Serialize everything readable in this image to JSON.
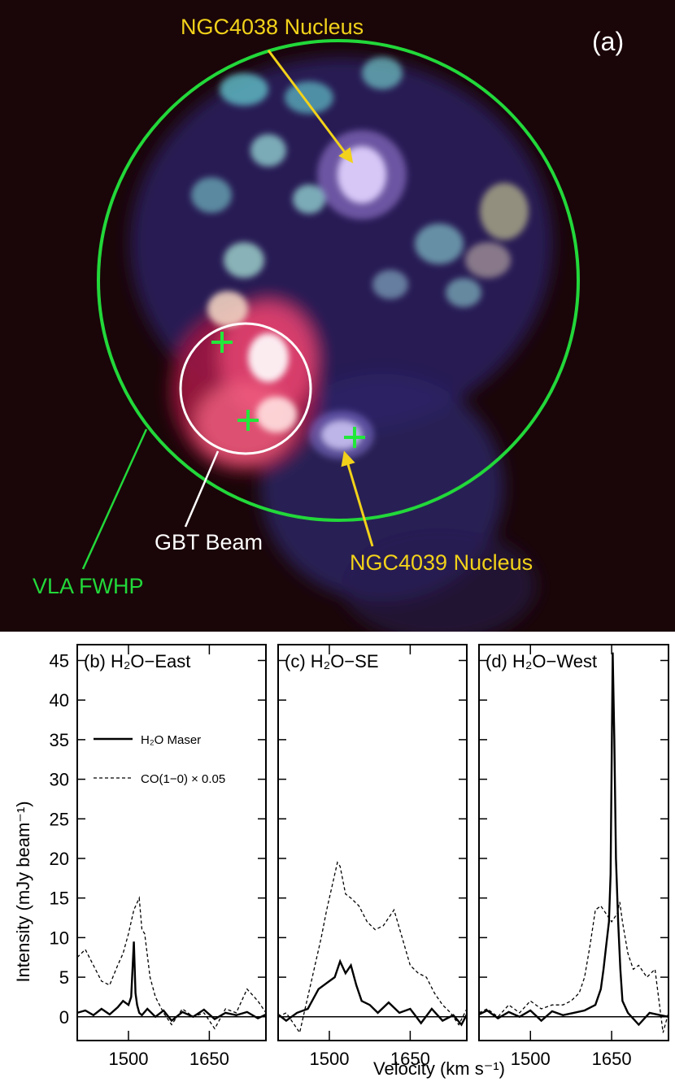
{
  "image_panel": {
    "panel_label": "(a)",
    "labels": {
      "ngc4038": "NGC4038 Nucleus",
      "ngc4039": "NGC4039 Nucleus",
      "gbt_beam": "GBT Beam",
      "vla_fwhp": "VLA FWHP"
    },
    "colors": {
      "background": "#1a0508",
      "vla_circle": "#22d83a",
      "gbt_circle": "#ffffff",
      "arrow": "#f2d21a",
      "label_yellow": "#f2d21a",
      "label_green": "#22d83a",
      "label_white": "#ffffff",
      "cross": "#22e83a"
    },
    "maser_crosses": 3
  },
  "chart_data": [
    {
      "type": "line",
      "panel_label": "(b) H₂O−East",
      "xlim": [
        1405,
        1755
      ],
      "ylim": [
        -3,
        47
      ],
      "xticks": [
        1500,
        1650
      ],
      "yticks": [
        0,
        5,
        10,
        15,
        20,
        25,
        30,
        35,
        40,
        45
      ],
      "legend": {
        "location": "upper-left",
        "solid": "H₂O Maser",
        "dashed": "CO(1−0) × 0.05"
      },
      "series": [
        {
          "name": "H₂O Maser",
          "style": "solid",
          "x": [
            1405,
            1420,
            1435,
            1450,
            1465,
            1480,
            1490,
            1500,
            1505,
            1510,
            1513,
            1516,
            1520,
            1525,
            1535,
            1550,
            1565,
            1580,
            1600,
            1620,
            1640,
            1660,
            1680,
            1700,
            1720,
            1740,
            1755
          ],
          "y": [
            0.5,
            0.8,
            0.2,
            1.0,
            0.3,
            1.2,
            2.0,
            1.5,
            2.5,
            9.5,
            3.0,
            1.5,
            0.5,
            0.2,
            1.0,
            0.0,
            0.8,
            -0.5,
            0.6,
            0.0,
            0.9,
            -0.3,
            0.5,
            0.2,
            0.6,
            -0.2,
            0.3
          ]
        },
        {
          "name": "CO(1−0) × 0.05",
          "style": "dashed",
          "x": [
            1405,
            1420,
            1435,
            1450,
            1465,
            1480,
            1490,
            1500,
            1510,
            1520,
            1525,
            1530,
            1540,
            1550,
            1565,
            1580,
            1600,
            1620,
            1640,
            1660,
            1680,
            1700,
            1720,
            1740,
            1755
          ],
          "y": [
            7.5,
            8.5,
            6.5,
            4.5,
            4.0,
            6.5,
            8.0,
            10.5,
            13.5,
            15.0,
            11.0,
            10.5,
            5.0,
            2.5,
            0.5,
            -1.0,
            1.0,
            0.0,
            0.5,
            -1.5,
            1.0,
            0.5,
            3.5,
            2.0,
            0.5
          ]
        }
      ]
    },
    {
      "type": "line",
      "panel_label": "(c) H₂O−SE",
      "xlim": [
        1405,
        1755
      ],
      "ylim": [
        -3,
        47
      ],
      "xticks": [
        1500,
        1650
      ],
      "series": [
        {
          "name": "H₂O Maser",
          "style": "solid",
          "x": [
            1405,
            1420,
            1440,
            1460,
            1480,
            1490,
            1500,
            1510,
            1520,
            1530,
            1540,
            1550,
            1560,
            1575,
            1590,
            1610,
            1630,
            1650,
            1670,
            1690,
            1710,
            1730,
            1745,
            1755
          ],
          "y": [
            0.3,
            -0.5,
            0.5,
            1.0,
            3.5,
            4.0,
            4.5,
            5.0,
            7.0,
            5.5,
            6.5,
            4.0,
            2.0,
            1.5,
            0.5,
            1.8,
            0.5,
            1.0,
            -0.8,
            1.0,
            -0.5,
            0.2,
            -1.0,
            0.3
          ]
        },
        {
          "name": "CO(1−0) × 0.05",
          "style": "dashed",
          "x": [
            1405,
            1420,
            1435,
            1445,
            1455,
            1465,
            1475,
            1485,
            1495,
            1505,
            1515,
            1520,
            1530,
            1540,
            1555,
            1570,
            1585,
            1600,
            1610,
            1620,
            1635,
            1650,
            1665,
            1680,
            1695,
            1710,
            1725,
            1740,
            1755
          ],
          "y": [
            0.0,
            0.5,
            -1.0,
            -2.0,
            1.0,
            4.0,
            7.0,
            10.0,
            13.5,
            16.5,
            19.5,
            19.0,
            15.5,
            15.0,
            14.0,
            12.0,
            11.0,
            11.5,
            12.5,
            13.5,
            10.0,
            6.5,
            5.5,
            5.0,
            3.0,
            1.5,
            0.5,
            -1.0,
            1.0
          ]
        }
      ]
    },
    {
      "type": "line",
      "panel_label": "(d) H₂O−West",
      "xlim": [
        1405,
        1755
      ],
      "ylim": [
        -3,
        47
      ],
      "xticks": [
        1500,
        1650
      ],
      "series": [
        {
          "name": "H₂O Maser",
          "style": "solid",
          "x": [
            1405,
            1420,
            1440,
            1460,
            1480,
            1500,
            1520,
            1540,
            1560,
            1580,
            1600,
            1620,
            1630,
            1635,
            1640,
            1645,
            1648,
            1652,
            1655,
            1658,
            1662,
            1666,
            1670,
            1680,
            1700,
            1720,
            1740,
            1755
          ],
          "y": [
            0.3,
            0.8,
            -0.2,
            0.6,
            0.0,
            0.8,
            -0.5,
            0.7,
            0.2,
            0.5,
            0.8,
            1.5,
            3.5,
            6.0,
            9.0,
            12.0,
            18.0,
            46.0,
            35.0,
            20.0,
            12.0,
            6.0,
            2.0,
            0.5,
            -1.0,
            0.5,
            0.2,
            0.0
          ]
        },
        {
          "name": "CO(1−0) × 0.05",
          "style": "dashed",
          "x": [
            1405,
            1420,
            1440,
            1460,
            1480,
            1500,
            1520,
            1540,
            1560,
            1575,
            1590,
            1600,
            1610,
            1620,
            1630,
            1640,
            1650,
            1660,
            1665,
            1670,
            1680,
            1690,
            1700,
            1715,
            1730,
            1745,
            1755
          ],
          "y": [
            0.5,
            1.0,
            0.0,
            1.5,
            0.5,
            2.0,
            1.0,
            1.5,
            1.5,
            2.0,
            3.0,
            5.0,
            9.0,
            13.5,
            14.0,
            13.0,
            12.0,
            13.0,
            14.5,
            12.0,
            8.0,
            6.0,
            6.5,
            5.0,
            6.0,
            -2.0,
            0.5
          ]
        }
      ]
    }
  ],
  "axes": {
    "ylabel": "Intensity (mJy beam⁻¹)",
    "xlabel": "Velocity (km s⁻¹)"
  }
}
